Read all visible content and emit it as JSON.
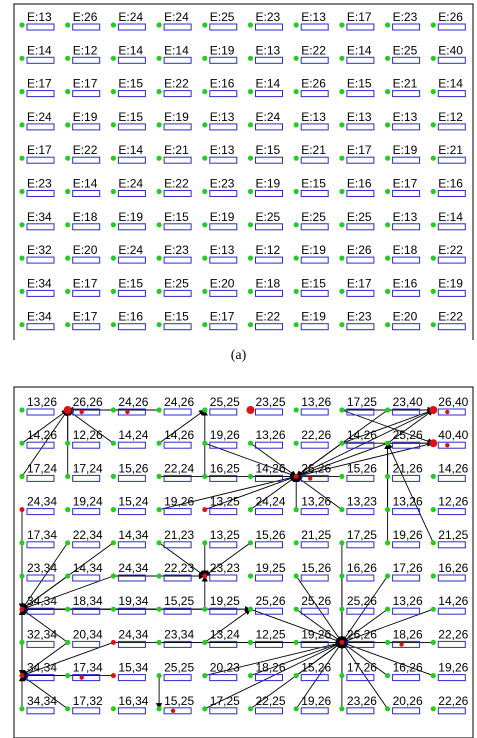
{
  "caption_a": "(a)",
  "panel_a": {
    "labels": [
      [
        "E:13",
        "E:26",
        "E:24",
        "E:24",
        "E:25",
        "E:23",
        "E:13",
        "E:17",
        "E:23",
        "E:26"
      ],
      [
        "E:14",
        "E:12",
        "E:14",
        "E:14",
        "E:19",
        "E:13",
        "E:22",
        "E:14",
        "E:25",
        "E:40"
      ],
      [
        "E:17",
        "E:17",
        "E:15",
        "E:22",
        "E:16",
        "E:14",
        "E:26",
        "E:15",
        "E:21",
        "E:14"
      ],
      [
        "E:24",
        "E:19",
        "E:15",
        "E:19",
        "E:13",
        "E:24",
        "E:13",
        "E:13",
        "E:13",
        "E:12"
      ],
      [
        "E:17",
        "E:22",
        "E:14",
        "E:21",
        "E:13",
        "E:15",
        "E:21",
        "E:17",
        "E:19",
        "E:21"
      ],
      [
        "E:23",
        "E:14",
        "E:24",
        "E:22",
        "E:23",
        "E:19",
        "E:15",
        "E:16",
        "E:17",
        "E:16"
      ],
      [
        "E:34",
        "E:18",
        "E:19",
        "E:15",
        "E:19",
        "E:25",
        "E:25",
        "E:25",
        "E:13",
        "E:14"
      ],
      [
        "E:32",
        "E:20",
        "E:24",
        "E:23",
        "E:13",
        "E:12",
        "E:19",
        "E:26",
        "E:18",
        "E:22"
      ],
      [
        "E:34",
        "E:17",
        "E:15",
        "E:25",
        "E:20",
        "E:18",
        "E:15",
        "E:17",
        "E:16",
        "E:19"
      ],
      [
        "E:34",
        "E:17",
        "E:16",
        "E:15",
        "E:17",
        "E:22",
        "E:19",
        "E:23",
        "E:20",
        "E:22"
      ]
    ]
  },
  "panel_b": {
    "labels": [
      [
        "13,26",
        "26,26",
        "24,26",
        "24,26",
        "25,25",
        "23,25",
        "13,26",
        "17,25",
        "23,40",
        "26,40"
      ],
      [
        "14,26",
        "12,26",
        "14,24",
        "14,26",
        "19,26",
        "13,26",
        "22,26",
        "14,26",
        "25,26",
        "40,40"
      ],
      [
        "17,24",
        "17,24",
        "15,26",
        "22,24",
        "16,25",
        "14,26",
        "26,26",
        "15,26",
        "21,26",
        "14,26"
      ],
      [
        "24,34",
        "19,24",
        "15,24",
        "19,26",
        "13,25",
        "24,24",
        "13,26",
        "13,23",
        "13,26",
        "12,26"
      ],
      [
        "17,34",
        "22,34",
        "14,34",
        "21,23",
        "13,25",
        "15,26",
        "21,25",
        "17,25",
        "19,26",
        "21,25"
      ],
      [
        "23,34",
        "14,34",
        "24,34",
        "22,23",
        "23,23",
        "19,25",
        "15,26",
        "16,26",
        "17,26",
        "16,26"
      ],
      [
        "34,34",
        "18,34",
        "19,34",
        "15,25",
        "19,25",
        "25,26",
        "25,26",
        "25,26",
        "13,26",
        "14,26"
      ],
      [
        "32,34",
        "20,34",
        "24,34",
        "23,34",
        "13,24",
        "12,25",
        "19,26",
        "26,26",
        "18,26",
        "22,26"
      ],
      [
        "34,34",
        "17,34",
        "15,34",
        "25,25",
        "20,23",
        "18,26",
        "15,26",
        "17,26",
        "16,26",
        "19,26"
      ],
      [
        "34,34",
        "17,32",
        "16,34",
        "15,25",
        "17,25",
        "22,25",
        "19,26",
        "23,26",
        "20,26",
        "22,26"
      ]
    ]
  },
  "colors": {
    "node": "#22cc22",
    "rect": "#2a2ad0",
    "head": "#dd1111",
    "border": "#000000",
    "arrow": "#000000"
  }
}
